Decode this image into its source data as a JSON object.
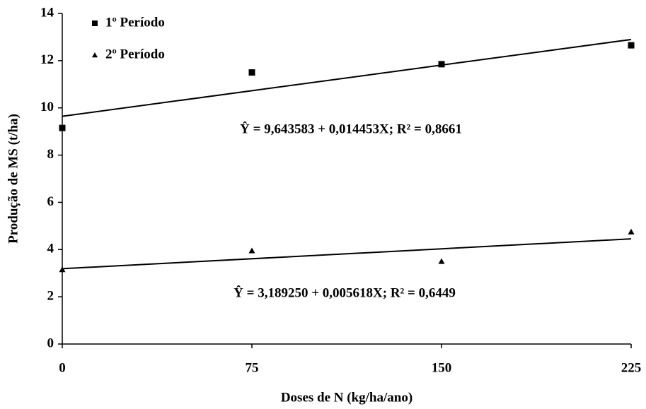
{
  "chart_data": {
    "type": "scatter",
    "x_label": "Doses de N (kg/ha/ano)",
    "y_label": "Produção de MS (t/ha)",
    "xlim": [
      0,
      225
    ],
    "xticks": [
      0,
      75,
      150,
      225
    ],
    "ylim": [
      0,
      14
    ],
    "yticks": [
      0,
      2,
      4,
      6,
      8,
      10,
      12,
      14
    ],
    "grid": false,
    "legend": "upper left",
    "x": [
      0,
      75,
      150,
      225
    ],
    "series": [
      {
        "name": "1º Período",
        "color": "#000000",
        "marker": "square",
        "values": [
          9.15,
          11.5,
          11.85,
          12.65
        ],
        "trend": {
          "intercept": 9.643583,
          "slope": 0.014453
        }
      },
      {
        "name": "2º Período",
        "color": "#000000",
        "marker": "triangle",
        "values": [
          3.15,
          3.95,
          3.5,
          4.75
        ],
        "trend": {
          "intercept": 3.18925,
          "slope": 0.005618
        }
      }
    ],
    "annotations": [
      "Ŷ = 9,643583 + 0,014453X; R² = 0,8661",
      "Ŷ = 3,189250 + 0,005618X; R² = 0,6449"
    ]
  }
}
